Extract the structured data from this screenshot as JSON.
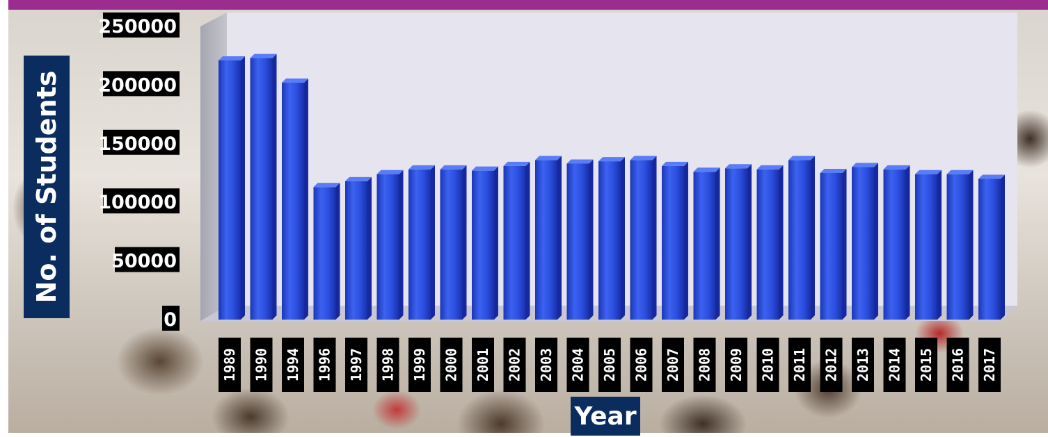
{
  "chart_data": {
    "type": "bar",
    "xlabel": "Year",
    "ylabel": "No. of Students",
    "ylim": [
      0,
      250000
    ],
    "yticks": [
      "250000",
      "200000",
      "150000",
      "100000",
      "50000",
      "0"
    ],
    "categories": [
      "1989",
      "1990",
      "1994",
      "1996",
      "1997",
      "1998",
      "1999",
      "2000",
      "2001",
      "2002",
      "2003",
      "2004",
      "2005",
      "2006",
      "2007",
      "2008",
      "2009",
      "2010",
      "2011",
      "2012",
      "2013",
      "2014",
      "2015",
      "2016",
      "2017"
    ],
    "values": [
      221000,
      223000,
      202000,
      113000,
      118000,
      124000,
      128000,
      128000,
      127000,
      131000,
      136000,
      133000,
      135000,
      136000,
      131000,
      126000,
      129000,
      128000,
      136000,
      125000,
      130000,
      128000,
      124000,
      124000,
      120000
    ],
    "grid": false,
    "legend": "none",
    "bar_color": "#2f52e0",
    "plot_bg": "#e6e4ee"
  }
}
